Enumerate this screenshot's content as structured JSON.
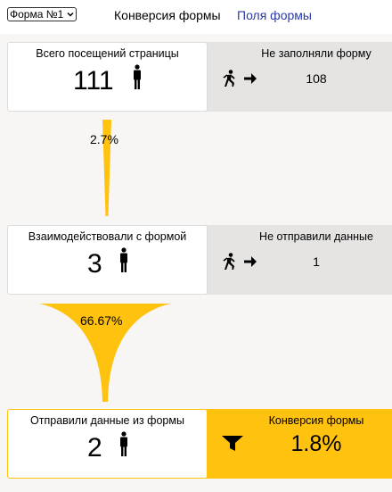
{
  "header": {
    "form_select": "Форма №1",
    "tabs": [
      {
        "label": "Конверсия формы",
        "active": true
      },
      {
        "label": "Поля формы",
        "active": false
      }
    ]
  },
  "funnel": {
    "visits": {
      "title": "Всего посещений страницы",
      "value": "111",
      "side_title": "Не заполняли форму",
      "side_value": "108"
    },
    "interacted": {
      "title": "Взаимодействовали с формой",
      "value": "3",
      "side_title": "Не отправили данные",
      "side_value": "1"
    },
    "submitted": {
      "title": "Отправили данные из формы",
      "value": "2",
      "side_title": "Конверсия формы",
      "side_value": "1.8%"
    },
    "step_conversions": [
      "2.7%",
      "66.67%"
    ]
  },
  "icons": [
    "chevron-down-icon",
    "person-icon",
    "runner-arrow-icon",
    "funnel-icon"
  ],
  "colors": {
    "accent": "#ffc20e",
    "side_panel": "#e5e4e3",
    "link": "#2b3aa8"
  }
}
